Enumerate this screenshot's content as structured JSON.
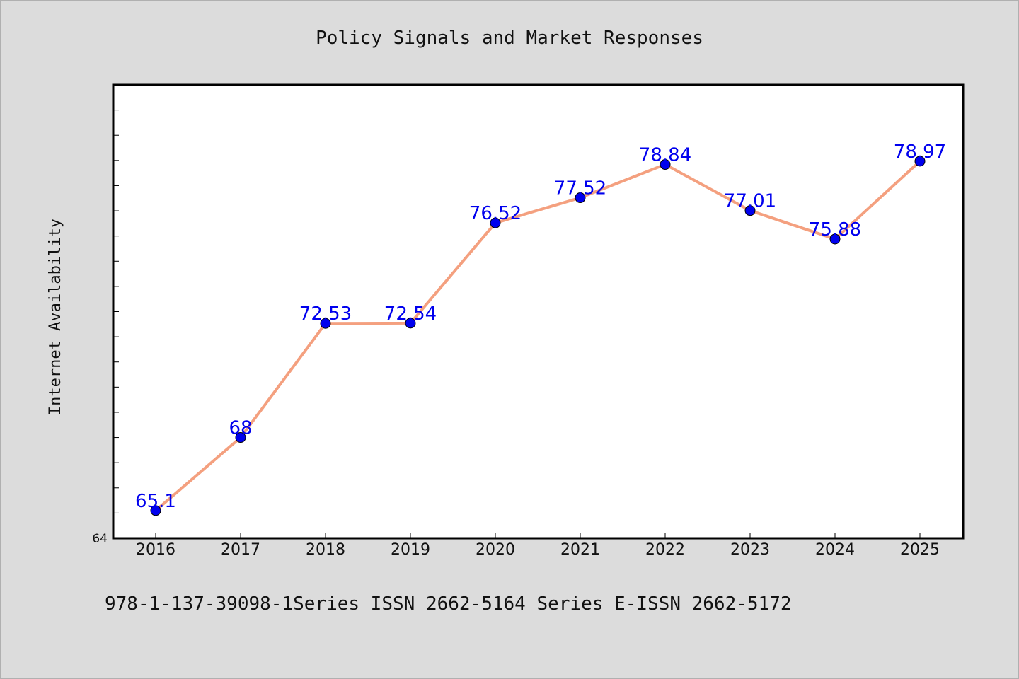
{
  "chart_data": {
    "type": "line",
    "title": "Policy Signals and Market Responses",
    "xlabel": "",
    "ylabel": "Internet Availability",
    "categories": [
      "2016",
      "2017",
      "2018",
      "2019",
      "2020",
      "2021",
      "2022",
      "2023",
      "2024",
      "2025"
    ],
    "series": [
      {
        "values": [
          65.1,
          68,
          72.53,
          72.54,
          76.52,
          77.52,
          78.84,
          77.01,
          75.88,
          78.97
        ],
        "labels": [
          "65.1",
          "68",
          "72.53",
          "72.54",
          "76.52",
          "77.52",
          "78.84",
          "77.01",
          "75.88",
          "78.97"
        ],
        "line_color": "#f4a07f",
        "marker_color": "#0000ee"
      }
    ],
    "ylim": [
      64,
      82
    ],
    "y_tick_labels": [
      "64"
    ],
    "grid": false,
    "legend": "none"
  },
  "footer": {
    "text": "978-1-137-39098-1Series ISSN 2662-5164 Series E-ISSN 2662-5172"
  }
}
